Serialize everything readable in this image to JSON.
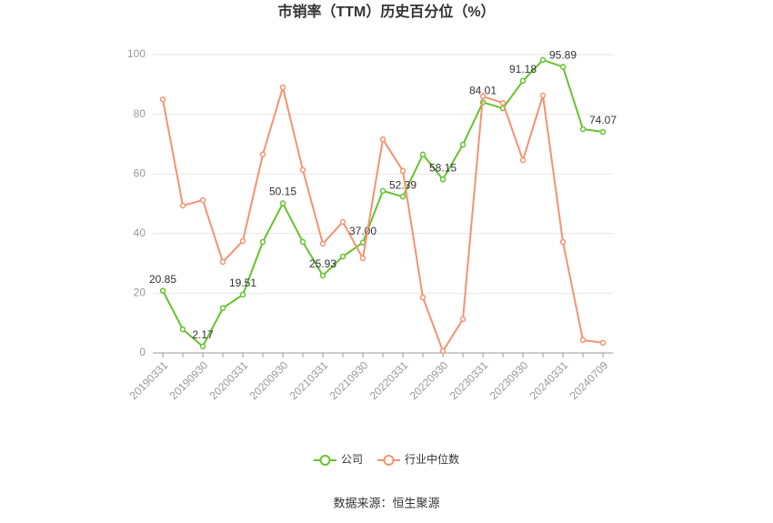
{
  "chart_data": {
    "type": "line",
    "title": "市销率（TTM）历史百分位（%）",
    "source": "数据来源：恒生聚源",
    "categories": [
      "20190331",
      null,
      "20190930",
      null,
      "20200331",
      null,
      "20200930",
      null,
      "20210331",
      null,
      "20210930",
      null,
      "20220331",
      null,
      "20220930",
      null,
      "20230331",
      null,
      "20230930",
      null,
      "20240331",
      null,
      "20240709"
    ],
    "series": [
      {
        "name": "公司",
        "color": "#66c22e",
        "values": [
          20.85,
          7.9,
          2.17,
          15,
          19.51,
          37.2,
          50.15,
          37.2,
          25.93,
          32.3,
          37.0,
          54.3,
          52.39,
          66.5,
          58.15,
          69.8,
          84.01,
          82,
          91.18,
          98.2,
          95.89,
          75,
          74.07
        ],
        "value_labels": [
          "20.85",
          null,
          "2.17",
          null,
          "19.51",
          null,
          "50.15",
          null,
          "25.93",
          null,
          "37.00",
          null,
          "52.39",
          null,
          "58.15",
          null,
          "84.01",
          null,
          "91.18",
          null,
          "95.89",
          null,
          "74.07"
        ]
      },
      {
        "name": "行业中位数",
        "color": "#f59271",
        "values": [
          85,
          49.4,
          51.2,
          30.5,
          37.5,
          66.5,
          89,
          61.3,
          36.6,
          43.9,
          31.7,
          71.6,
          61,
          18.6,
          0.6,
          11.3,
          86,
          83.8,
          64.6,
          86.3,
          37.2,
          4.3,
          3.4
        ]
      }
    ],
    "ylim": [
      0,
      100
    ],
    "yticks": [
      0,
      20,
      40,
      60,
      80,
      100
    ],
    "grid": true,
    "legend": "bottom"
  }
}
